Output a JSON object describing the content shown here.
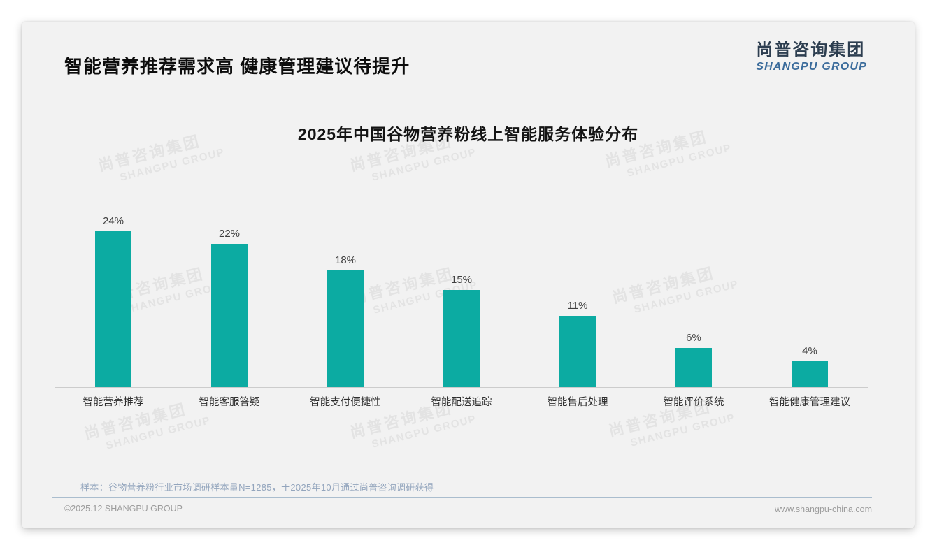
{
  "page": {
    "title": "智能营养推荐需求高 健康管理建议待提升",
    "logo": {
      "cn": "尚普咨询集团",
      "en": "SHANGPU GROUP"
    },
    "watermark": {
      "cn": "尚普咨询集团",
      "en": "SHANGPU GROUP"
    },
    "footnote": "样本：谷物营养粉行业市场调研样本量N=1285，于2025年10月通过尚普咨询调研获得",
    "footer": {
      "copyright": "©2025.12 SHANGPU GROUP",
      "website": "www.shangpu-china.com"
    },
    "colors": {
      "bar": "#0caba2",
      "logo_cn": "#2d3e50",
      "logo_en": "#3a6b9b",
      "footnote": "#93a5bd",
      "card_background": "#f2f2f2"
    }
  },
  "chart_data": {
    "type": "bar",
    "title": "2025年中国谷物营养粉线上智能服务体验分布",
    "categories": [
      "智能营养推荐",
      "智能客服答疑",
      "智能支付便捷性",
      "智能配送追踪",
      "智能售后处理",
      "智能评价系统",
      "智能健康管理建议"
    ],
    "values": [
      24,
      22,
      18,
      15,
      11,
      6,
      4
    ],
    "value_labels": [
      "24%",
      "22%",
      "18%",
      "15%",
      "11%",
      "6%",
      "4%"
    ],
    "unit": "%",
    "bar_color": "#0caba2",
    "xlabel": "",
    "ylabel": "",
    "ylim": [
      0,
      26
    ],
    "grid": false,
    "legend": false,
    "data_labels_position": "above-bar"
  }
}
